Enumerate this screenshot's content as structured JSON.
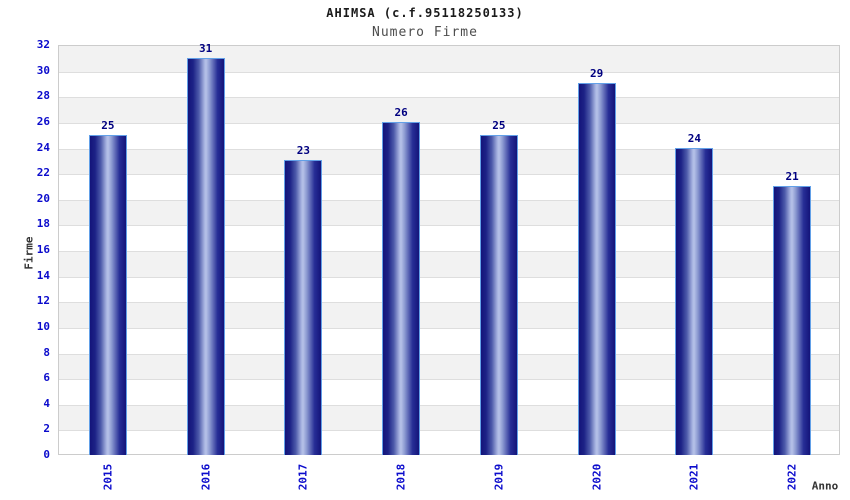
{
  "chart_data": {
    "type": "bar",
    "title": "AHIMSA (c.f.95118250133)",
    "subtitle": "Numero Firme",
    "xlabel": "Anno",
    "ylabel": "Firme",
    "categories": [
      "2015",
      "2016",
      "2017",
      "2018",
      "2019",
      "2020",
      "2021",
      "2022"
    ],
    "values": [
      25,
      31,
      23,
      26,
      25,
      29,
      24,
      21
    ],
    "value_labels": [
      "25",
      "31",
      "23",
      "26",
      "25",
      "29",
      "24",
      "21"
    ],
    "ylim": [
      0,
      32
    ],
    "ytick_step": 2,
    "yticks": [
      0,
      2,
      4,
      6,
      8,
      10,
      12,
      14,
      16,
      18,
      20,
      22,
      24,
      26,
      28,
      30,
      32
    ],
    "legend": "none",
    "grid": "horizontal alternating bands every 2 units",
    "colors": {
      "tick_label": "#0b0bcc",
      "value_label": "#000080",
      "title": "#1a1a1a",
      "subtitle": "#4d4d4d",
      "axis_title": "#333333",
      "bar_dark": "#14147a",
      "bar_highlight": "#b7c2e8",
      "bar_border": "#62a0e8",
      "band_gray": "#f2f2f2",
      "band_white": "#ffffff",
      "plot_border": "#cccccc"
    }
  }
}
